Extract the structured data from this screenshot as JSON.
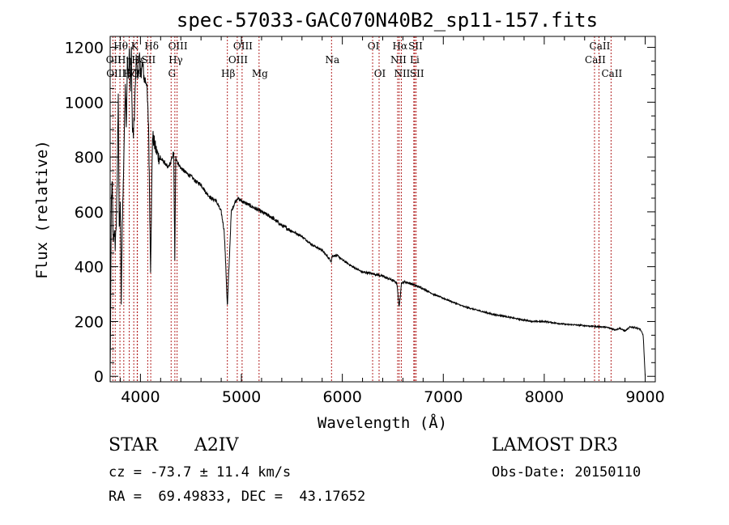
{
  "chart_data": {
    "type": "line",
    "title": "spec-57033-GAC070N40B2_sp11-157.fits",
    "xlabel": "Wavelength (Å)",
    "ylabel": "Flux (relative)",
    "xlim": [
      3700,
      9100
    ],
    "ylim": [
      -20,
      1240
    ],
    "xticks": [
      4000,
      5000,
      6000,
      7000,
      8000,
      9000
    ],
    "yticks": [
      0,
      200,
      400,
      600,
      800,
      1000,
      1200
    ],
    "spectrum": {
      "x": [
        3700,
        3705,
        3712,
        3720,
        3730,
        3740,
        3750,
        3760,
        3770,
        3780,
        3790,
        3800,
        3810,
        3820,
        3830,
        3840,
        3850,
        3860,
        3870,
        3880,
        3890,
        3900,
        3910,
        3920,
        3930,
        3940,
        3950,
        3960,
        3970,
        3980,
        3990,
        4000,
        4020,
        4040,
        4060,
        4080,
        4100,
        4120,
        4150,
        4180,
        4210,
        4240,
        4270,
        4300,
        4330,
        4340,
        4350,
        4370,
        4400,
        4430,
        4460,
        4500,
        4550,
        4600,
        4650,
        4700,
        4750,
        4800,
        4830,
        4850,
        4861,
        4875,
        4900,
        4930,
        4960,
        5000,
        5050,
        5100,
        5150,
        5200,
        5300,
        5400,
        5500,
        5600,
        5700,
        5800,
        5890,
        5900,
        5950,
        6000,
        6100,
        6200,
        6300,
        6400,
        6500,
        6540,
        6563,
        6585,
        6620,
        6700,
        6800,
        6900,
        7000,
        7100,
        7200,
        7300,
        7400,
        7500,
        7600,
        7700,
        7800,
        7900,
        8000,
        8100,
        8200,
        8300,
        8400,
        8500,
        8600,
        8660,
        8700,
        8750,
        8800,
        8850,
        8900,
        8950,
        8980,
        9000
      ],
      "y": [
        0,
        220,
        650,
        700,
        500,
        530,
        480,
        560,
        700,
        1050,
        520,
        640,
        260,
        560,
        700,
        880,
        1080,
        920,
        1150,
        1080,
        1200,
        1040,
        1180,
        900,
        880,
        950,
        1060,
        1180,
        1100,
        1100,
        1170,
        1100,
        1140,
        1080,
        1080,
        920,
        400,
        880,
        830,
        800,
        790,
        780,
        760,
        780,
        820,
        420,
        800,
        780,
        760,
        750,
        740,
        730,
        710,
        700,
        670,
        650,
        640,
        600,
        530,
        360,
        250,
        380,
        600,
        630,
        650,
        640,
        630,
        620,
        610,
        600,
        580,
        550,
        530,
        510,
        480,
        460,
        420,
        440,
        440,
        425,
        400,
        380,
        375,
        365,
        350,
        340,
        250,
        340,
        345,
        335,
        320,
        300,
        285,
        270,
        255,
        245,
        235,
        225,
        220,
        212,
        205,
        200,
        200,
        195,
        190,
        188,
        185,
        182,
        180,
        175,
        170,
        175,
        165,
        180,
        178,
        172,
        150,
        0
      ]
    },
    "lines": [
      {
        "label": "Hθ",
        "x": 3797,
        "row": 1
      },
      {
        "label": "K",
        "x": 3934,
        "row": 1
      },
      {
        "label": "Hδ",
        "x": 4102,
        "row": 1
      },
      {
        "label": "OIII",
        "x": 4363,
        "row": 1
      },
      {
        "label": "OIII",
        "x": 5007,
        "row": 1
      },
      {
        "label": "OI",
        "x": 6300,
        "row": 1
      },
      {
        "label": "Hα",
        "x": 6563,
        "row": 1
      },
      {
        "label": "SII",
        "x": 6717,
        "row": 1
      },
      {
        "label": "CaII",
        "x": 8542,
        "row": 1
      },
      {
        "label": "OII",
        "x": 3727,
        "row": 2
      },
      {
        "label": "Hη",
        "x": 3835,
        "row": 2
      },
      {
        "label": "Hε",
        "x": 3970,
        "row": 2
      },
      {
        "label": "SII",
        "x": 4072,
        "row": 2
      },
      {
        "label": "Hγ",
        "x": 4341,
        "row": 2
      },
      {
        "label": "OIII",
        "x": 4959,
        "row": 2
      },
      {
        "label": "Na",
        "x": 5893,
        "row": 2
      },
      {
        "label": "NII",
        "x": 6548,
        "row": 2
      },
      {
        "label": "Li",
        "x": 6708,
        "row": 2
      },
      {
        "label": "CaII",
        "x": 8498,
        "row": 2
      },
      {
        "label": "OIII",
        "x": 3750,
        "row": 3
      },
      {
        "label": "Hζ",
        "x": 3889,
        "row": 3
      },
      {
        "label": "H",
        "x": 3968,
        "row": 3
      },
      {
        "label": "G",
        "x": 4304,
        "row": 3
      },
      {
        "label": "Hβ",
        "x": 4861,
        "row": 3
      },
      {
        "label": "Mg",
        "x": 5175,
        "row": 3
      },
      {
        "label": "OI",
        "x": 6364,
        "row": 3
      },
      {
        "label": "NII",
        "x": 6584,
        "row": 3
      },
      {
        "label": "SII",
        "x": 6731,
        "row": 3
      },
      {
        "label": "CaII",
        "x": 8662,
        "row": 3
      }
    ]
  },
  "info": {
    "class": "STAR",
    "subclass": "A2IV",
    "survey": "LAMOST DR3",
    "cz": "cz = -73.7 ± 11.4 km/s",
    "obs_date": "Obs-Date: 20150110",
    "radec": "RA =  69.49833, DEC =  43.17652"
  },
  "colors": {
    "line_marker": "#b22222",
    "spectrum": "#000000",
    "axes": "#000000"
  }
}
